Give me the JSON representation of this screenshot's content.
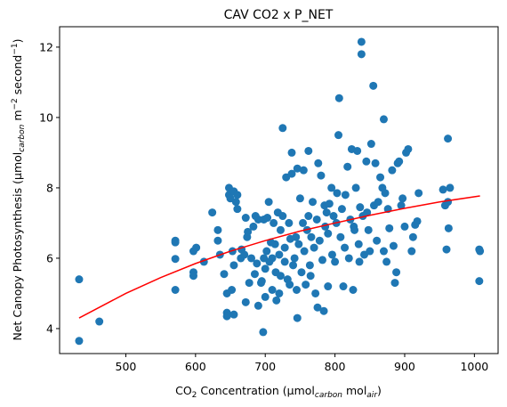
{
  "chart_data": {
    "type": "scatter",
    "title": "CAV CO2 x P_NET",
    "x_label": [
      "CO",
      "2",
      " Concentration (μmol",
      "carbon",
      " mol",
      "air",
      ")"
    ],
    "y_label": [
      "Net Canopy Photosynthesis (μmol",
      "carbon",
      " m",
      "−2",
      " second",
      "−1",
      ")"
    ],
    "xlim": [
      405,
      1034
    ],
    "ylim": [
      3.29,
      12.58
    ],
    "xticks": [
      500,
      600,
      700,
      800,
      900,
      1000
    ],
    "yticks": [
      4,
      6,
      8,
      10,
      12
    ],
    "series": [
      {
        "type": "scatter",
        "color": "#1f77b4",
        "x": [
          433,
          433,
          462,
          571,
          571,
          571,
          571,
          597,
          597,
          597,
          601,
          612,
          624,
          632,
          632,
          635,
          641,
          645,
          645,
          645,
          648,
          648,
          650,
          652,
          653,
          655,
          655,
          655,
          658,
          660,
          660,
          665,
          666,
          670,
          672,
          672,
          674,
          675,
          677,
          680,
          683,
          685,
          686,
          688,
          690,
          690,
          694,
          695,
          697,
          698,
          698,
          700,
          700,
          702,
          703,
          705,
          706,
          708,
          710,
          710,
          712,
          714,
          715,
          716,
          718,
          720,
          720,
          722,
          722,
          725,
          725,
          728,
          728,
          730,
          732,
          734,
          735,
          736,
          738,
          738,
          740,
          742,
          744,
          745,
          746,
          746,
          748,
          750,
          752,
          754,
          755,
          756,
          758,
          760,
          762,
          762,
          764,
          765,
          766,
          768,
          770,
          772,
          774,
          775,
          776,
          778,
          780,
          782,
          784,
          785,
          786,
          788,
          790,
          790,
          792,
          795,
          796,
          798,
          800,
          802,
          803,
          805,
          806,
          808,
          810,
          812,
          814,
          815,
          818,
          820,
          822,
          824,
          826,
          827,
          828,
          830,
          832,
          834,
          835,
          836,
          838,
          838,
          840,
          842,
          845,
          846,
          848,
          850,
          852,
          855,
          856,
          858,
          860,
          862,
          865,
          868,
          870,
          870,
          872,
          874,
          876,
          878,
          882,
          884,
          886,
          888,
          890,
          892,
          895,
          897,
          900,
          902,
          905,
          910,
          912,
          915,
          918,
          920,
          955,
          958,
          960,
          962,
          962,
          963,
          965,
          1007,
          1007,
          1008
        ],
        "values": [
          5.4,
          3.65,
          4.2,
          6.5,
          6.45,
          5.98,
          5.1,
          6.2,
          5.6,
          5.5,
          6.3,
          5.9,
          7.3,
          6.8,
          6.5,
          6.1,
          5.55,
          5.0,
          4.45,
          4.35,
          8.0,
          7.8,
          7.7,
          5.1,
          6.2,
          4.4,
          5.8,
          7.9,
          7.6,
          7.8,
          7.4,
          6.0,
          6.25,
          6.1,
          7.15,
          4.75,
          6.6,
          6.75,
          5.3,
          6.0,
          6.9,
          5.55,
          7.2,
          5.85,
          4.65,
          7.1,
          5.3,
          5.35,
          3.9,
          6.0,
          7.1,
          4.9,
          5.7,
          6.2,
          7.15,
          7.6,
          5.9,
          6.45,
          5.1,
          6.0,
          7.0,
          6.4,
          5.6,
          4.8,
          7.3,
          6.1,
          5.0,
          5.5,
          6.8,
          9.7,
          7.2,
          6.3,
          5.9,
          8.3,
          5.4,
          7.0,
          5.25,
          6.55,
          8.4,
          9.0,
          5.8,
          6.0,
          6.6,
          5.1,
          8.55,
          4.3,
          6.4,
          7.7,
          5.6,
          7.0,
          8.5,
          6.2,
          5.25,
          6.8,
          9.05,
          7.2,
          5.8,
          5.5,
          6.6,
          7.6,
          6.3,
          5.0,
          7.1,
          4.6,
          8.7,
          6.5,
          8.35,
          5.95,
          4.5,
          7.5,
          6.9,
          7.3,
          5.2,
          6.7,
          7.55,
          8.0,
          6.1,
          7.2,
          5.9,
          7.0,
          7.85,
          9.5,
          10.55,
          6.6,
          7.4,
          5.2,
          6.3,
          7.8,
          8.6,
          6.0,
          7.1,
          9.1,
          5.1,
          6.9,
          6.8,
          8.0,
          9.05,
          6.4,
          5.9,
          7.45,
          12.15,
          11.8,
          7.2,
          6.1,
          8.75,
          7.3,
          6.8,
          6.2,
          9.25,
          10.9,
          7.5,
          8.7,
          6.5,
          7.6,
          8.3,
          8.0,
          9.95,
          6.2,
          7.85,
          5.9,
          7.4,
          6.85,
          8.5,
          6.35,
          5.3,
          5.6,
          8.7,
          8.75,
          7.5,
          7.7,
          6.9,
          9.0,
          9.1,
          6.2,
          6.6,
          6.95,
          7.05,
          7.85,
          7.95,
          7.5,
          6.25,
          9.4,
          7.6,
          6.85,
          8.0,
          6.25,
          5.35,
          6.2
        ]
      },
      {
        "type": "line",
        "color": "red",
        "x": [
          433,
          500,
          550,
          600,
          650,
          700,
          750,
          800,
          850,
          900,
          950,
          1008
        ],
        "values": [
          4.3,
          5.0,
          5.45,
          5.85,
          6.2,
          6.5,
          6.77,
          7.0,
          7.22,
          7.42,
          7.6,
          7.77
        ]
      }
    ]
  }
}
